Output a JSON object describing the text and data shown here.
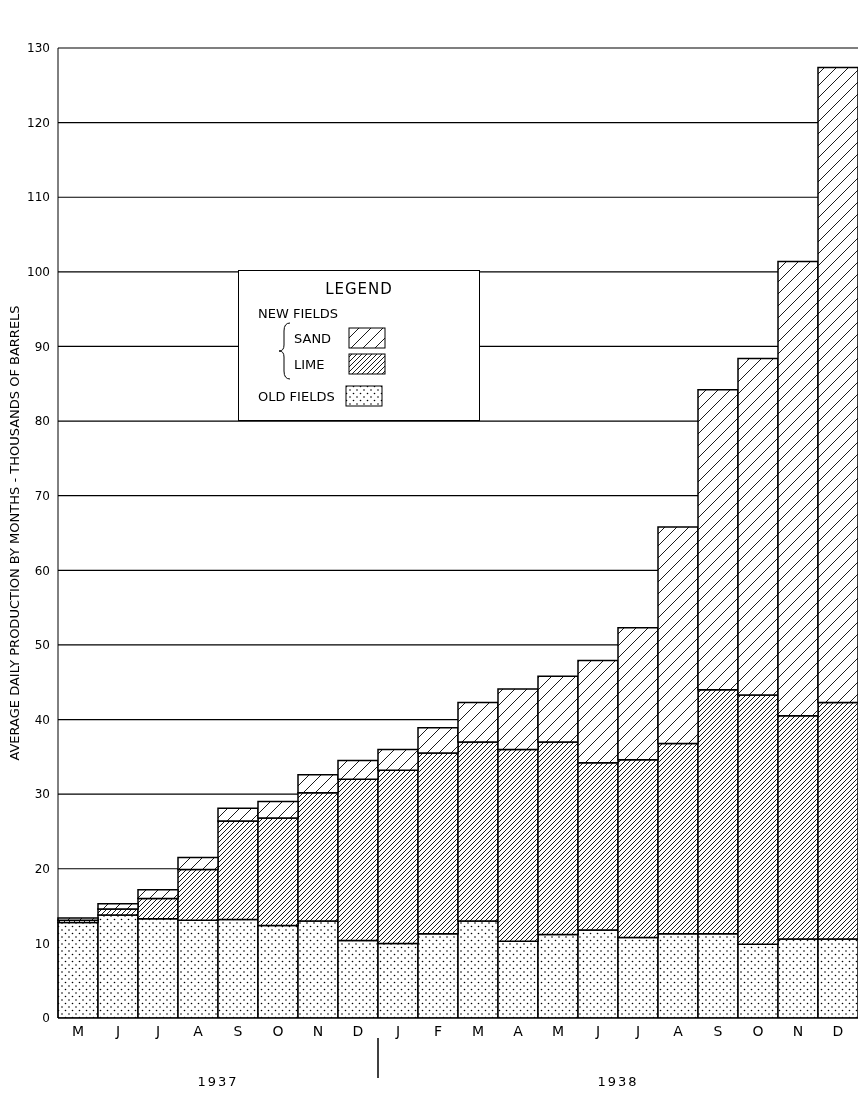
{
  "chart_data": {
    "type": "bar",
    "stacked": true,
    "categories": [
      "M",
      "J",
      "J",
      "A",
      "S",
      "O",
      "N",
      "D",
      "J",
      "F",
      "M",
      "A",
      "M",
      "J",
      "J",
      "A",
      "S",
      "O",
      "N",
      "D"
    ],
    "series": [
      {
        "name": "OLD FIELDS",
        "color": "#000000",
        "values": [
          12.8,
          13.8,
          13.3,
          13.1,
          13.2,
          12.4,
          13,
          10.4,
          10,
          11.3,
          13,
          10.3,
          11.2,
          11.8,
          10.8,
          11.3,
          11.3,
          9.9,
          10.6,
          10.6
        ]
      },
      {
        "name": "LIME",
        "color": "#000000",
        "values": [
          0.3,
          0.8,
          2.7,
          6.8,
          13.2,
          14.4,
          17.2,
          21.6,
          23.2,
          24.2,
          24,
          25.7,
          25.8,
          22.4,
          23.8,
          25.5,
          32.7,
          33.4,
          29.9,
          31.7
        ]
      },
      {
        "name": "SAND",
        "color": "#000000",
        "values": [
          0.3,
          0.7,
          1.2,
          1.6,
          1.7,
          2.2,
          2.4,
          2.5,
          2.8,
          3.4,
          5.3,
          8.1,
          8.8,
          13.7,
          17.7,
          29,
          40.2,
          45.1,
          60.9,
          85.1
        ]
      }
    ],
    "ylabel": "AVERAGE DAILY PRODUCTION BY MONTHS - THOUSANDS OF BARRELS",
    "ylim": [
      0,
      130
    ],
    "yticks": [
      0,
      10,
      20,
      30,
      40,
      50,
      60,
      70,
      80,
      90,
      100,
      110,
      120,
      130
    ],
    "grid": "y",
    "legend": "top left",
    "legend_title": "LEGEND",
    "annotations": [
      "1937",
      "1938",
      "NEW FIELDS"
    ]
  }
}
